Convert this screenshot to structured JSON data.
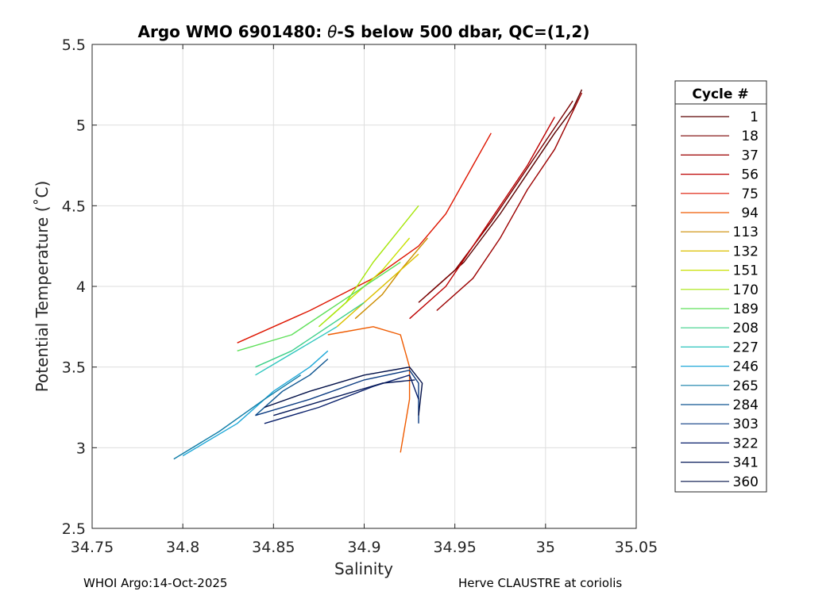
{
  "chart_data": {
    "type": "line",
    "title_prefix": "Argo WMO 6901480: ",
    "title_theta": "θ",
    "title_suffix": "-S below 500 dbar,  QC=(1,2)",
    "xlabel": "Salinity",
    "ylabel": "Potential Temperature (˚C)",
    "xlim": [
      34.75,
      35.05
    ],
    "ylim": [
      2.5,
      5.5
    ],
    "xticks": [
      34.75,
      34.8,
      34.85,
      34.9,
      34.95,
      35,
      35.05
    ],
    "xtick_labels": [
      "34.75",
      "34.8",
      "34.85",
      "34.9",
      "34.95",
      "35",
      "35.05"
    ],
    "yticks": [
      2.5,
      3,
      3.5,
      4,
      4.5,
      5,
      5.5
    ],
    "ytick_labels": [
      "2.5",
      "3",
      "3.5",
      "4",
      "4.5",
      "5",
      "5.5"
    ],
    "grid": true,
    "legend": {
      "title": "Cycle #",
      "placement": "outside-right",
      "entries": [
        {
          "label": "1",
          "color": "#5a0000"
        },
        {
          "label": "18",
          "color": "#7a0000"
        },
        {
          "label": "37",
          "color": "#9c0000"
        },
        {
          "label": "56",
          "color": "#bd0000"
        },
        {
          "label": "75",
          "color": "#de1500"
        },
        {
          "label": "94",
          "color": "#ef5b00"
        },
        {
          "label": "113",
          "color": "#cc8c00"
        },
        {
          "label": "132",
          "color": "#dcc000"
        },
        {
          "label": "151",
          "color": "#c8e000"
        },
        {
          "label": "170",
          "color": "#a6e60a"
        },
        {
          "label": "189",
          "color": "#5fe05a"
        },
        {
          "label": "208",
          "color": "#3dd08a"
        },
        {
          "label": "227",
          "color": "#2ec6be"
        },
        {
          "label": "246",
          "color": "#1fa8d8"
        },
        {
          "label": "265",
          "color": "#117ea8"
        },
        {
          "label": "284",
          "color": "#0e5590"
        },
        {
          "label": "303",
          "color": "#0a3a80"
        },
        {
          "label": "322",
          "color": "#081f6a"
        },
        {
          "label": "341",
          "color": "#051858"
        },
        {
          "label": "360",
          "color": "#021048"
        }
      ]
    },
    "series": [
      {
        "color": "#5a0000",
        "x": [
          34.935,
          34.955,
          34.975,
          34.99,
          35.005,
          35.015,
          35.02
        ],
        "y": [
          3.95,
          4.15,
          4.45,
          4.7,
          4.95,
          5.1,
          5.22
        ]
      },
      {
        "color": "#7a0000",
        "x": [
          34.93,
          34.95,
          34.97,
          34.985,
          35.0,
          35.015
        ],
        "y": [
          3.9,
          4.1,
          4.4,
          4.65,
          4.9,
          5.15
        ]
      },
      {
        "color": "#9c0000",
        "x": [
          34.94,
          34.96,
          34.975,
          34.99,
          35.005,
          35.02
        ],
        "y": [
          3.85,
          4.05,
          4.3,
          4.6,
          4.85,
          5.2
        ]
      },
      {
        "color": "#bd0000",
        "x": [
          34.925,
          34.945,
          34.96,
          34.975,
          34.99,
          35.005
        ],
        "y": [
          3.8,
          4.0,
          4.25,
          4.5,
          4.75,
          5.05
        ]
      },
      {
        "color": "#de1500",
        "x": [
          34.83,
          34.87,
          34.905,
          34.93,
          34.945,
          34.96,
          34.97
        ],
        "y": [
          3.65,
          3.85,
          4.05,
          4.25,
          4.45,
          4.75,
          4.95
        ]
      },
      {
        "color": "#ef5b00",
        "x": [
          34.88,
          34.905,
          34.92,
          34.925,
          34.925,
          34.922,
          34.92
        ],
        "y": [
          3.7,
          3.75,
          3.7,
          3.5,
          3.3,
          3.1,
          2.97
        ]
      },
      {
        "color": "#cc8c00",
        "x": [
          34.895,
          34.91,
          34.92,
          34.935
        ],
        "y": [
          3.8,
          3.95,
          4.1,
          4.3
        ]
      },
      {
        "color": "#dcc000",
        "x": [
          34.885,
          34.9,
          34.915,
          34.93
        ],
        "y": [
          3.75,
          3.9,
          4.05,
          4.2
        ]
      },
      {
        "color": "#c8e000",
        "x": [
          34.88,
          34.895,
          34.91,
          34.925
        ],
        "y": [
          3.8,
          3.95,
          4.1,
          4.3
        ]
      },
      {
        "color": "#a6e60a",
        "x": [
          34.875,
          34.89,
          34.905,
          34.93
        ],
        "y": [
          3.75,
          3.9,
          4.15,
          4.5
        ]
      },
      {
        "color": "#5fe05a",
        "x": [
          34.83,
          34.86,
          34.88,
          34.9,
          34.92
        ],
        "y": [
          3.6,
          3.7,
          3.85,
          4.0,
          4.15
        ]
      },
      {
        "color": "#3dd08a",
        "x": [
          34.84,
          34.86,
          34.88,
          34.9
        ],
        "y": [
          3.5,
          3.6,
          3.75,
          3.9
        ]
      },
      {
        "color": "#2ec6be",
        "x": [
          34.84,
          34.855,
          34.87,
          34.885
        ],
        "y": [
          3.45,
          3.55,
          3.65,
          3.75
        ]
      },
      {
        "color": "#1fa8d8",
        "x": [
          34.8,
          34.83,
          34.85,
          34.87,
          34.88
        ],
        "y": [
          2.95,
          3.15,
          3.35,
          3.5,
          3.6
        ]
      },
      {
        "color": "#117ea8",
        "x": [
          34.795,
          34.82,
          34.845,
          34.865
        ],
        "y": [
          2.93,
          3.1,
          3.3,
          3.45
        ]
      },
      {
        "color": "#0e5590",
        "x": [
          34.84,
          34.855,
          34.87,
          34.88
        ],
        "y": [
          3.2,
          3.35,
          3.45,
          3.55
        ]
      },
      {
        "color": "#0a3a80",
        "x": [
          34.84,
          34.87,
          34.9,
          34.925,
          34.93,
          34.93
        ],
        "y": [
          3.2,
          3.3,
          3.42,
          3.48,
          3.4,
          3.15
        ]
      },
      {
        "color": "#081f6a",
        "x": [
          34.845,
          34.875,
          34.905,
          34.925,
          34.93
        ],
        "y": [
          3.15,
          3.25,
          3.38,
          3.45,
          3.3
        ]
      },
      {
        "color": "#051858",
        "x": [
          34.85,
          34.88,
          34.91,
          34.928
        ],
        "y": [
          3.2,
          3.3,
          3.4,
          3.42
        ]
      },
      {
        "color": "#021048",
        "x": [
          34.845,
          34.87,
          34.9,
          34.925,
          34.932,
          34.93
        ],
        "y": [
          3.25,
          3.35,
          3.45,
          3.5,
          3.4,
          3.2
        ]
      }
    ]
  },
  "footer": {
    "left": "WHOI Argo:14-Oct-2025",
    "right": "Herve CLAUSTRE at coriolis"
  }
}
